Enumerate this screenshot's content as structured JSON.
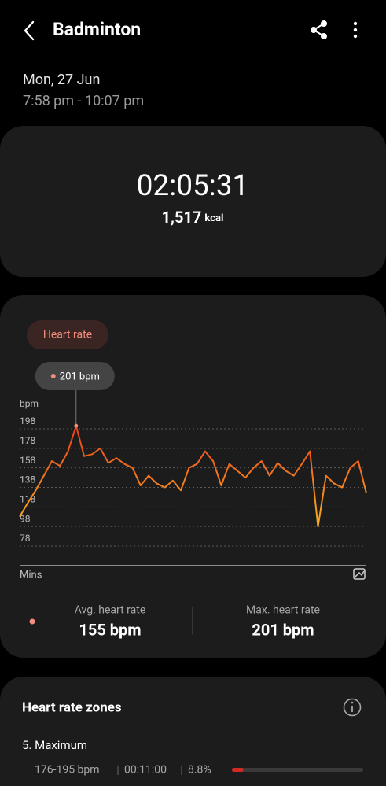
{
  "header": {
    "title": "Badminton"
  },
  "session": {
    "date": "Mon, 27 Jun",
    "time": "7:58 pm - 10:07 pm"
  },
  "summary": {
    "duration": "02:05:31",
    "calories": "1,517",
    "calories_unit": "kcal"
  },
  "heart_rate": {
    "tab": "Heart rate",
    "tooltip": "201 bpm",
    "avg_label": "Avg. heart rate",
    "avg_value": "155 bpm",
    "max_label": "Max. heart rate",
    "max_value": "201 bpm"
  },
  "chart_data": {
    "type": "line",
    "y_label": "bpm",
    "x_label": "Mins",
    "values": [
      108,
      122,
      135,
      150,
      165,
      160,
      175,
      201,
      170,
      172,
      178,
      163,
      168,
      162,
      158,
      140,
      150,
      142,
      138,
      145,
      135,
      158,
      162,
      175,
      165,
      140,
      162,
      155,
      148,
      158,
      165,
      150,
      163,
      155,
      150,
      162,
      175,
      98,
      150,
      142,
      138,
      158,
      165,
      132
    ],
    "ylim": [
      58,
      210
    ],
    "yticks": [
      78,
      98,
      118,
      138,
      158,
      178,
      198
    ],
    "grid": true,
    "colors": [
      "#f7d31c",
      "#f5871f",
      "#e2361b"
    ],
    "peak_index": 7
  },
  "zones": {
    "title": "Heart rate zones",
    "items": [
      {
        "name": "5. Maximum",
        "range": "176-195 bpm",
        "time": "00:11:00",
        "share": {
          "value": 8.8,
          "label": "8.8%"
        }
      }
    ]
  }
}
